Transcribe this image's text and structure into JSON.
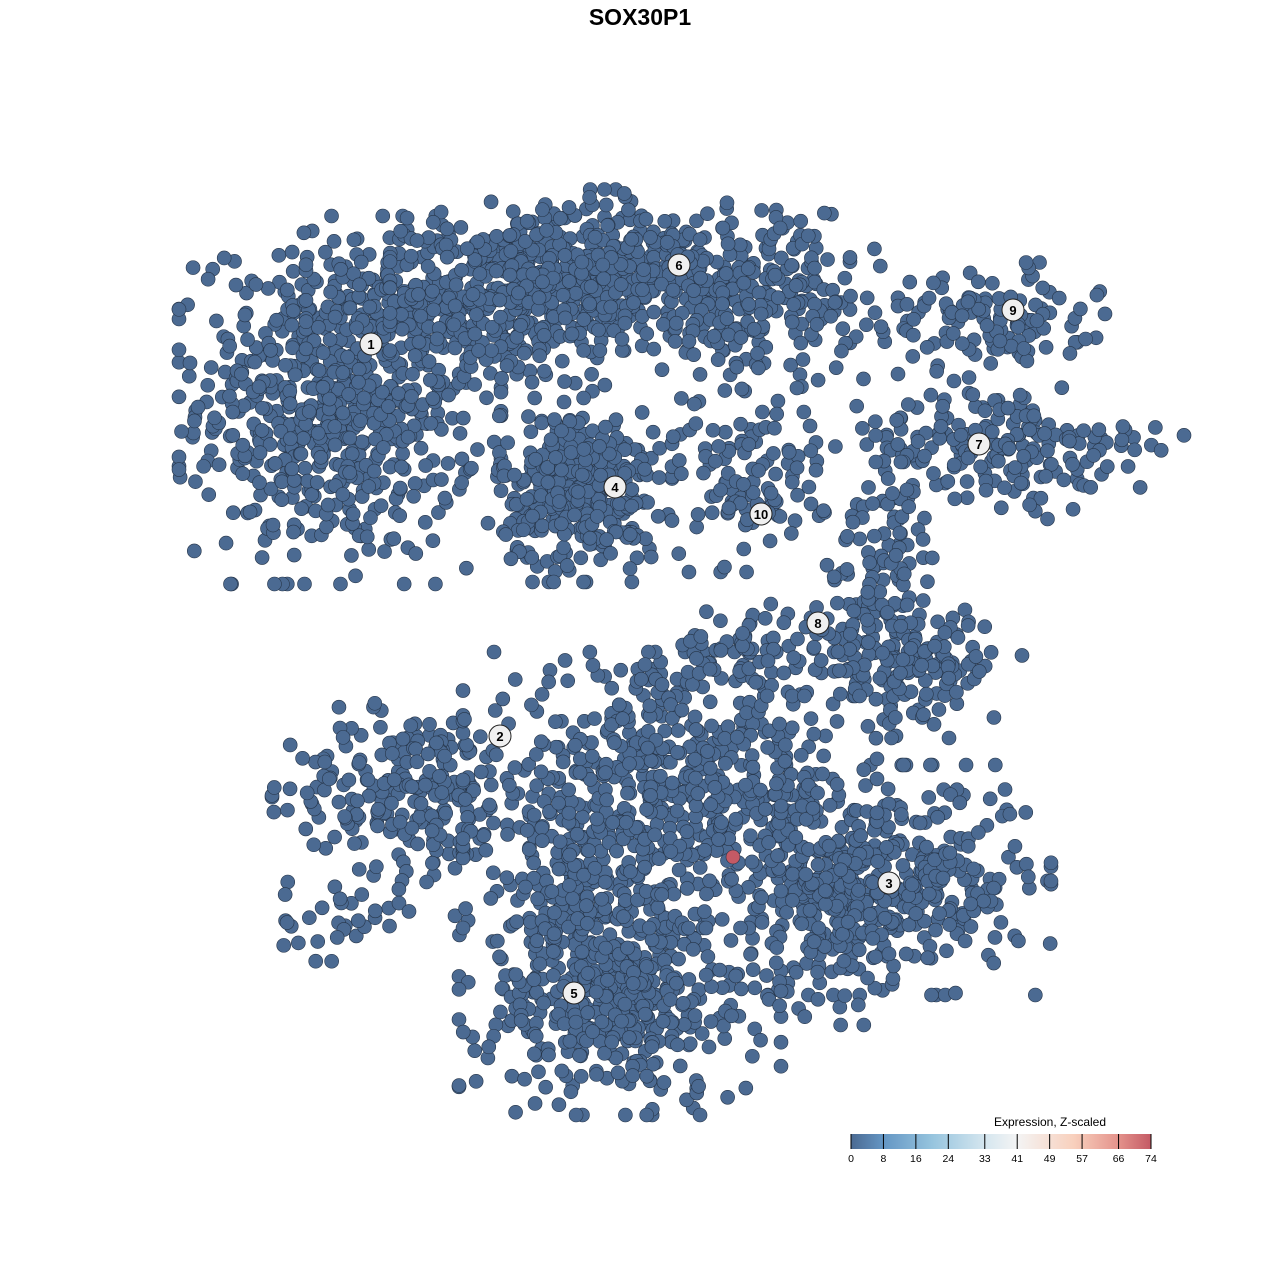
{
  "chart_data": {
    "type": "scatter",
    "title": "SOX30P1",
    "xlabel": "",
    "ylabel": "",
    "grid": false,
    "axes_visible": false,
    "point_color_low": "#4b6a92",
    "point_outline": "#263549",
    "clusters": [
      {
        "label": "1",
        "label_pos": [
          -26.9,
          29.6
        ],
        "blobs": [
          {
            "center": [
              -30,
              24
            ],
            "sd": [
              7,
              8
            ],
            "n": 700
          },
          {
            "center": [
              -15,
              33
            ],
            "sd": [
              8,
              4
            ],
            "n": 300
          }
        ]
      },
      {
        "label": "2",
        "label_pos": [
          -14,
          -9.6
        ],
        "blobs": [
          {
            "center": [
              -23,
              -15
            ],
            "sd": [
              6,
              4
            ],
            "n": 220
          },
          {
            "center": [
              -30,
              -28
            ],
            "sd": [
              3,
              2
            ],
            "n": 30
          }
        ]
      },
      {
        "label": "3",
        "label_pos": [
          24.9,
          -24.3
        ],
        "blobs": [
          {
            "center": [
              25,
              -24
            ],
            "sd": [
              7,
              5
            ],
            "n": 400
          },
          {
            "center": [
              18,
              -27
            ],
            "sd": [
              3,
              5
            ],
            "n": 100
          }
        ]
      },
      {
        "label": "4",
        "label_pos": [
          -2.5,
          15.3
        ],
        "blobs": [
          {
            "center": [
              -6,
              15
            ],
            "sd": [
              4,
              4
            ],
            "n": 350
          }
        ]
      },
      {
        "label": "5",
        "label_pos": [
          -6.6,
          -35.3
        ],
        "blobs": [
          {
            "center": [
              -2,
              -36
            ],
            "sd": [
              7,
              5
            ],
            "n": 450
          },
          {
            "center": [
              -7,
              -26
            ],
            "sd": [
              5,
              4
            ],
            "n": 150
          },
          {
            "center": [
              3,
              -15
            ],
            "sd": [
              9,
              6
            ],
            "n": 600
          }
        ]
      },
      {
        "label": "6",
        "label_pos": [
          3.9,
          37.5
        ],
        "blobs": [
          {
            "center": [
              -2,
              37
            ],
            "sd": [
              10,
              3.5
            ],
            "n": 500
          },
          {
            "center": [
              12,
              32
            ],
            "sd": [
              6,
              4
            ],
            "n": 150
          }
        ]
      },
      {
        "label": "7",
        "label_pos": [
          33.9,
          19.6
        ],
        "blobs": [
          {
            "center": [
              36,
              19
            ],
            "sd": [
              8,
              3
            ],
            "n": 200
          }
        ]
      },
      {
        "label": "8",
        "label_pos": [
          17.8,
          1.7
        ],
        "blobs": [
          {
            "center": [
              24,
              4
            ],
            "sd": [
              3,
              6
            ],
            "n": 150
          },
          {
            "center": [
              29,
              -2
            ],
            "sd": [
              4,
              2.5
            ],
            "n": 100
          },
          {
            "center": [
              12,
              -1
            ],
            "sd": [
              5,
              2
            ],
            "n": 80
          }
        ]
      },
      {
        "label": "9",
        "label_pos": [
          37.3,
          33
        ],
        "blobs": [
          {
            "center": [
              35,
              32
            ],
            "sd": [
              5,
              2.5
            ],
            "n": 120
          }
        ]
      },
      {
        "label": "10",
        "label_pos": [
          12.1,
          12.6
        ],
        "blobs": [
          {
            "center": [
              11,
              16
            ],
            "sd": [
              3.5,
              4
            ],
            "n": 100
          }
        ]
      }
    ],
    "highlighted_points": [
      {
        "x": 9.3,
        "y": -21.7,
        "value": 74,
        "color": "#c45a65"
      }
    ],
    "colorbar": {
      "title": "Expression, Z-scaled",
      "range": [
        0,
        74
      ],
      "ticks": [
        "0",
        "8",
        "16",
        "24",
        "33",
        "41",
        "49",
        "57",
        "66",
        "74"
      ],
      "tick_values": [
        0,
        8,
        16,
        24,
        33,
        41,
        49,
        57,
        66,
        74
      ],
      "stops": [
        {
          "value": 0,
          "color": "#4b6a92"
        },
        {
          "value": 8,
          "color": "#6496c4"
        },
        {
          "value": 20,
          "color": "#96c4de"
        },
        {
          "value": 33,
          "color": "#d5e6ef"
        },
        {
          "value": 41,
          "color": "#f4f4f4"
        },
        {
          "value": 55,
          "color": "#f8d0bd"
        },
        {
          "value": 66,
          "color": "#e4928b"
        },
        {
          "value": 74,
          "color": "#c45a65"
        }
      ],
      "placement": "bottom-right"
    }
  }
}
